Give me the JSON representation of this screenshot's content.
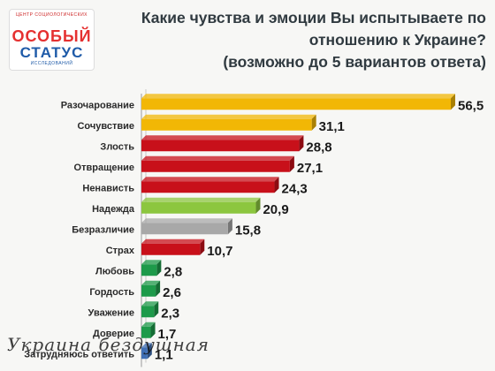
{
  "logo": {
    "top_arc": "ЦЕНТР СОЦИОЛОГИЧЕСКИХ",
    "line1": "ОСОБЫЙ",
    "line2": "СТАТУС",
    "bottom_arc": "ИССЛЕДОВАНИЙ"
  },
  "title_lines": [
    "Какие чувства и эмоции Вы испытываете по",
    "отношению к Украине?",
    "(возможно до 5 вариантов ответа)"
  ],
  "watermark": "Украина бездушная",
  "chart_data": {
    "type": "bar",
    "orientation": "horizontal",
    "title": "Какие чувства и эмоции Вы испытываете по отношению к Украине? (возможно до 5 вариантов ответа)",
    "categories": [
      "Разочарование",
      "Сочувствие",
      "Злость",
      "Отвращение",
      "Ненависть",
      "Надежда",
      "Безразличие",
      "Страх",
      "Любовь",
      "Гордость",
      "Уважение",
      "Доверие",
      "Затрудняюсь ответить"
    ],
    "values": [
      56.5,
      31.1,
      28.8,
      27.1,
      24.3,
      20.9,
      15.8,
      10.7,
      2.8,
      2.6,
      2.3,
      1.7,
      1.1
    ],
    "value_labels": [
      "56,5",
      "31,1",
      "28,8",
      "27,1",
      "24,3",
      "20,9",
      "15,8",
      "10,7",
      "2,8",
      "2,6",
      "2,3",
      "1,7",
      "1,1"
    ],
    "bar_colors": [
      "#f2b705",
      "#f2b705",
      "#c8101a",
      "#c8101a",
      "#c8101a",
      "#8cc63f",
      "#a8a8a8",
      "#c8101a",
      "#1d9a4a",
      "#1d9a4a",
      "#1d9a4a",
      "#1d9a4a",
      "#3f6fb5"
    ],
    "xlim": [
      0,
      56.5
    ],
    "grid": false,
    "legend": "none"
  }
}
